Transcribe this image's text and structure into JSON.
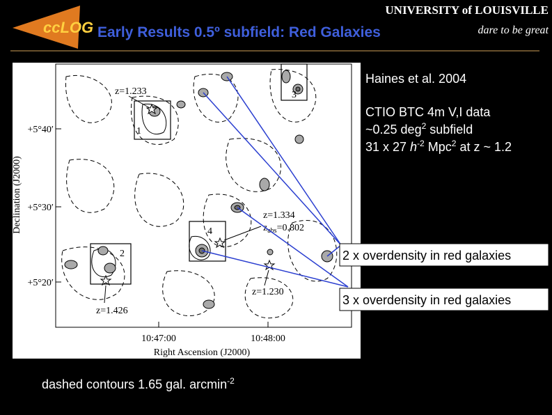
{
  "header": {
    "logo": "ccLOG",
    "title": "Early Results 0.5º subfield: Red Galaxies",
    "university": "UNIVERSITY of LOUISVILLE",
    "motto": "dare to be great"
  },
  "figure": {
    "y_axis_label": "Declination (J2000)",
    "x_axis_label": "Right Ascension (J2000)",
    "y_tick_labels": [
      "+5°40′",
      "+5°30′",
      "+5°20′"
    ],
    "x_tick_labels": [
      "10:47:00",
      "10:48:00"
    ],
    "box_labels": [
      "1",
      "2",
      "3",
      "4"
    ],
    "redshifts": {
      "z1": "z=1.233",
      "z2": "z=1.334",
      "zabs": [
        "z",
        "abs",
        "=0.802"
      ],
      "z3": "z=1.230",
      "z4": "z=1.426"
    }
  },
  "notes": {
    "reference": "Haines et al. 2004",
    "data": "CTIO BTC 4m V,I data",
    "area": [
      "~0.25 deg",
      "2",
      " subfield"
    ],
    "scale": [
      "31 x 27 ",
      "h",
      "-2",
      " Mpc",
      "2",
      " at z ~ 1.2"
    ]
  },
  "callouts": [
    "2 x overdensity in red galaxies",
    "3 x overdensity in red galaxies"
  ],
  "footer": [
    "dashed contours  1.65 gal. arcmin",
    "-2"
  ]
}
